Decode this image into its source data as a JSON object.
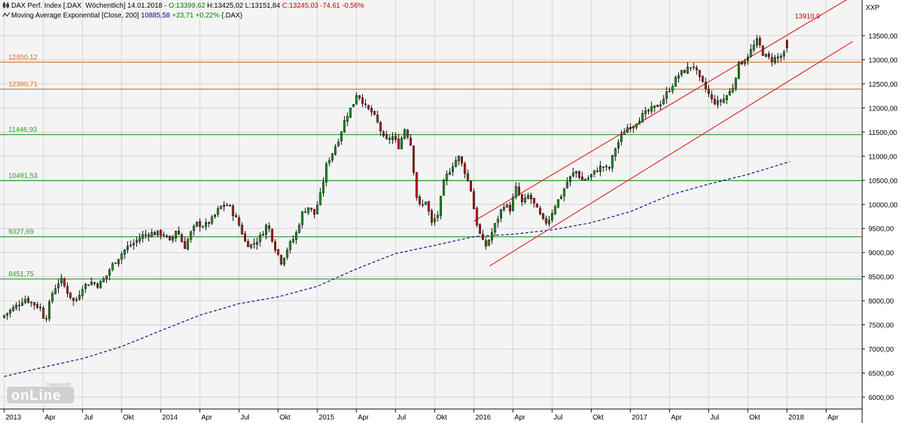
{
  "header": {
    "line1": {
      "instrument": "DAX Perf. Index [.DAX  Wöchentlich] 14.01.2018 - ",
      "open": "O:13399,62",
      "high": " H:13425,02",
      "low": " L:13151,84",
      "close": " C:13245,03",
      "change": " -74,61",
      "change_pct": " -0,56%"
    },
    "line2": {
      "indicator": "Moving Average Exponential [Close, 200] ",
      "value": "10885,58",
      "change": " +23,71",
      "change_pct": " +0,22%",
      "source": " {.DAX}"
    }
  },
  "watermark": {
    "brand": "online",
    "sub": "Tradesignal®"
  },
  "chart_data": {
    "type": "candlestick",
    "instrument": "DAX Perf. Index",
    "interval": "Wöchentlich",
    "y_unit_label": "XXP",
    "ylim": [
      5750,
      13950
    ],
    "y_ticks": [
      6000,
      6500,
      7000,
      7500,
      8000,
      8500,
      9000,
      9500,
      10000,
      10500,
      11000,
      11500,
      12000,
      12500,
      13000,
      13500
    ],
    "y_tick_labels": [
      "6000,00",
      "6500,00",
      "7000,00",
      "7500,00",
      "8000,00",
      "8500,00",
      "9000,00",
      "9500,00",
      "10000,00",
      "10500,00",
      "11000,00",
      "11500,00",
      "12000,00",
      "12500,00",
      "13000,00",
      "13500,00"
    ],
    "x_ticks": [
      {
        "label": "2013",
        "t": 0.0,
        "bold": true
      },
      {
        "label": "Apr",
        "t": 0.25
      },
      {
        "label": "Jul",
        "t": 0.5
      },
      {
        "label": "Okt",
        "t": 0.75
      },
      {
        "label": "2014",
        "t": 1.0,
        "bold": true
      },
      {
        "label": "Apr",
        "t": 1.25
      },
      {
        "label": "Jul",
        "t": 1.5
      },
      {
        "label": "Okt",
        "t": 1.75
      },
      {
        "label": "2015",
        "t": 2.0,
        "bold": true
      },
      {
        "label": "Apr",
        "t": 2.25
      },
      {
        "label": "Jul",
        "t": 2.5
      },
      {
        "label": "Okt",
        "t": 2.75
      },
      {
        "label": "2016",
        "t": 3.0,
        "bold": true
      },
      {
        "label": "Apr",
        "t": 3.25
      },
      {
        "label": "Jul",
        "t": 3.5
      },
      {
        "label": "Okt",
        "t": 3.75
      },
      {
        "label": "2017",
        "t": 4.0,
        "bold": true
      },
      {
        "label": "Apr",
        "t": 4.25
      },
      {
        "label": "Jul",
        "t": 4.5
      },
      {
        "label": "Okt",
        "t": 4.75
      },
      {
        "label": "2018",
        "t": 5.0,
        "bold": true
      },
      {
        "label": "Apr",
        "t": 5.25
      }
    ],
    "xlim_years": [
      -0.02,
      5.45
    ],
    "levels": [
      {
        "value": 12950.12,
        "label": "12950,12",
        "color": "#e07020"
      },
      {
        "value": 12390.71,
        "label": "12390,71",
        "color": "#e07020"
      },
      {
        "value": 11446.93,
        "label": "11446,93",
        "color": "#2e9a2e"
      },
      {
        "value": 10491.53,
        "label": "10491,53",
        "color": "#2e9a2e"
      },
      {
        "value": 9327.69,
        "label": "9327,69",
        "color": "#2e9a2e"
      },
      {
        "value": 8451.75,
        "label": "8451,75",
        "color": "#2e9a2e"
      }
    ],
    "channel": {
      "color": "#e02020",
      "upper": [
        {
          "t": 3.0,
          "v": 9650
        },
        {
          "t": 5.42,
          "v": 14320
        }
      ],
      "lower": [
        {
          "t": 3.1,
          "v": 8720
        },
        {
          "t": 5.42,
          "v": 13380
        }
      ]
    },
    "channel_annotation": {
      "label": "13910,9",
      "t": 5.05,
      "v": 13910.9,
      "color": "#c00000"
    },
    "ema": {
      "name": "Moving Average Exponential [Close, 200]",
      "color": "#00008b",
      "points": [
        [
          0.0,
          6430
        ],
        [
          0.25,
          6620
        ],
        [
          0.5,
          6800
        ],
        [
          0.75,
          7050
        ],
        [
          1.0,
          7380
        ],
        [
          1.25,
          7700
        ],
        [
          1.5,
          7940
        ],
        [
          1.75,
          8080
        ],
        [
          2.0,
          8300
        ],
        [
          2.25,
          8660
        ],
        [
          2.5,
          8980
        ],
        [
          2.75,
          9150
        ],
        [
          3.0,
          9330
        ],
        [
          3.25,
          9380
        ],
        [
          3.5,
          9470
        ],
        [
          3.75,
          9620
        ],
        [
          4.0,
          9850
        ],
        [
          4.25,
          10190
        ],
        [
          4.5,
          10420
        ],
        [
          4.75,
          10620
        ],
        [
          5.0,
          10870
        ],
        [
          5.02,
          10885
        ]
      ]
    },
    "anchors": [
      [
        0.0,
        7650
      ],
      [
        0.05,
        7780
      ],
      [
        0.1,
        7900
      ],
      [
        0.15,
        8050
      ],
      [
        0.2,
        7950
      ],
      [
        0.25,
        7850
      ],
      [
        0.28,
        7580
      ],
      [
        0.33,
        8200
      ],
      [
        0.38,
        8450
      ],
      [
        0.42,
        8200
      ],
      [
        0.47,
        7950
      ],
      [
        0.52,
        8300
      ],
      [
        0.58,
        8390
      ],
      [
        0.62,
        8320
      ],
      [
        0.67,
        8500
      ],
      [
        0.7,
        8700
      ],
      [
        0.75,
        8900
      ],
      [
        0.8,
        9100
      ],
      [
        0.85,
        9200
      ],
      [
        0.9,
        9350
      ],
      [
        0.95,
        9400
      ],
      [
        1.0,
        9400
      ],
      [
        1.04,
        9380
      ],
      [
        1.08,
        9200
      ],
      [
        1.12,
        9500
      ],
      [
        1.17,
        9100
      ],
      [
        1.21,
        9400
      ],
      [
        1.25,
        9600
      ],
      [
        1.3,
        9550
      ],
      [
        1.35,
        9700
      ],
      [
        1.4,
        9950
      ],
      [
        1.45,
        10000
      ],
      [
        1.5,
        9700
      ],
      [
        1.53,
        9500
      ],
      [
        1.56,
        9200
      ],
      [
        1.6,
        9150
      ],
      [
        1.65,
        9300
      ],
      [
        1.7,
        9600
      ],
      [
        1.75,
        9100
      ],
      [
        1.79,
        8800
      ],
      [
        1.83,
        9100
      ],
      [
        1.88,
        9350
      ],
      [
        1.92,
        9800
      ],
      [
        1.96,
        9950
      ],
      [
        2.0,
        9800
      ],
      [
        2.04,
        10200
      ],
      [
        2.08,
        10850
      ],
      [
        2.12,
        11100
      ],
      [
        2.16,
        11400
      ],
      [
        2.2,
        11800
      ],
      [
        2.25,
        12100
      ],
      [
        2.27,
        12300
      ],
      [
        2.3,
        12200
      ],
      [
        2.33,
        12000
      ],
      [
        2.37,
        11900
      ],
      [
        2.41,
        11650
      ],
      [
        2.45,
        11300
      ],
      [
        2.5,
        11400
      ],
      [
        2.54,
        11200
      ],
      [
        2.58,
        11600
      ],
      [
        2.62,
        11200
      ],
      [
        2.65,
        10200
      ],
      [
        2.68,
        9900
      ],
      [
        2.71,
        10100
      ],
      [
        2.75,
        9600
      ],
      [
        2.79,
        9800
      ],
      [
        2.83,
        10500
      ],
      [
        2.88,
        10800
      ],
      [
        2.92,
        11000
      ],
      [
        2.96,
        10700
      ],
      [
        3.0,
        10300
      ],
      [
        3.03,
        9700
      ],
      [
        3.06,
        9350
      ],
      [
        3.09,
        9100
      ],
      [
        3.12,
        9300
      ],
      [
        3.17,
        9700
      ],
      [
        3.21,
        10000
      ],
      [
        3.25,
        9900
      ],
      [
        3.29,
        10350
      ],
      [
        3.33,
        10000
      ],
      [
        3.37,
        10200
      ],
      [
        3.42,
        9900
      ],
      [
        3.47,
        9600
      ],
      [
        3.5,
        9700
      ],
      [
        3.54,
        10000
      ],
      [
        3.58,
        10200
      ],
      [
        3.62,
        10500
      ],
      [
        3.67,
        10700
      ],
      [
        3.71,
        10500
      ],
      [
        3.75,
        10550
      ],
      [
        3.8,
        10700
      ],
      [
        3.84,
        10800
      ],
      [
        3.88,
        10700
      ],
      [
        3.92,
        11150
      ],
      [
        3.96,
        11400
      ],
      [
        4.0,
        11600
      ],
      [
        4.04,
        11650
      ],
      [
        4.08,
        11800
      ],
      [
        4.12,
        11900
      ],
      [
        4.17,
        12000
      ],
      [
        4.21,
        12100
      ],
      [
        4.25,
        12300
      ],
      [
        4.29,
        12500
      ],
      [
        4.33,
        12700
      ],
      [
        4.38,
        12800
      ],
      [
        4.42,
        12900
      ],
      [
        4.46,
        12600
      ],
      [
        4.5,
        12400
      ],
      [
        4.54,
        12150
      ],
      [
        4.58,
        12100
      ],
      [
        4.62,
        12200
      ],
      [
        4.67,
        12400
      ],
      [
        4.71,
        12900
      ],
      [
        4.75,
        13000
      ],
      [
        4.79,
        13200
      ],
      [
        4.83,
        13400
      ],
      [
        4.87,
        13100
      ],
      [
        4.92,
        13000
      ],
      [
        4.96,
        13050
      ],
      [
        5.0,
        13100
      ],
      [
        5.02,
        13245
      ]
    ],
    "last_candle": {
      "open": 13399.62,
      "high": 13425.02,
      "low": 13151.84,
      "close": 13245.03
    }
  }
}
